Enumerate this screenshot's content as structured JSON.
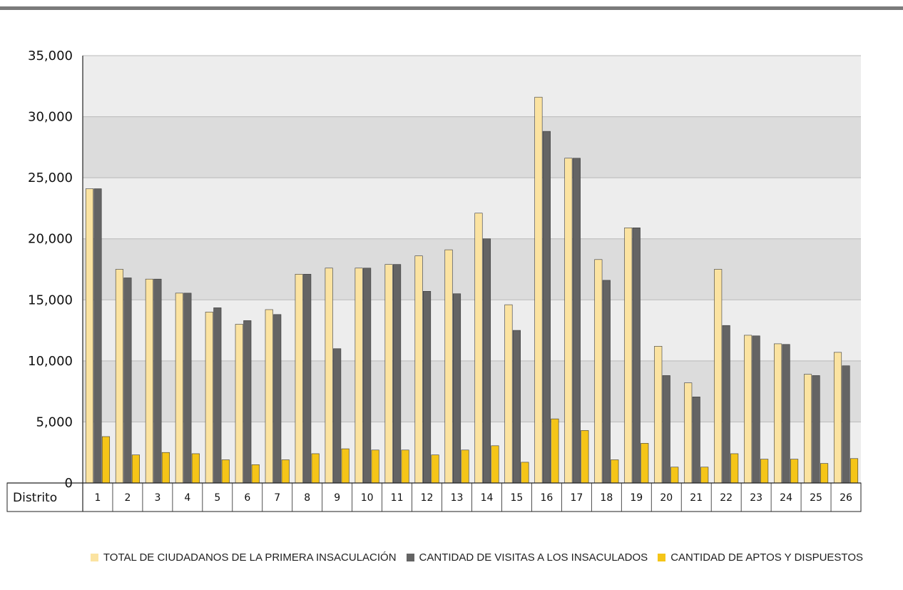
{
  "chart_data": {
    "type": "bar",
    "xlabel": "Distrito",
    "categories": [
      "1",
      "2",
      "3",
      "4",
      "5",
      "6",
      "7",
      "8",
      "9",
      "10",
      "11",
      "12",
      "13",
      "14",
      "15",
      "16",
      "17",
      "18",
      "19",
      "20",
      "21",
      "22",
      "23",
      "24",
      "25",
      "26"
    ],
    "yticks": [
      "0",
      "5,000",
      "10,000",
      "15,000",
      "20,000",
      "25,000",
      "30,000",
      "35,000"
    ],
    "ylim": [
      0,
      35000
    ],
    "grid": true,
    "legend_position": "bottom-right",
    "series": [
      {
        "name": "TOTAL DE CIUDADANOS DE LA PRIMERA INSACULACIÓN",
        "color": "#fbe3a1",
        "values": [
          24100,
          17500,
          16700,
          15550,
          14000,
          13000,
          14200,
          17100,
          17600,
          17600,
          17900,
          18600,
          19100,
          22100,
          14600,
          31600,
          26600,
          18300,
          20900,
          11200,
          8200,
          17500,
          12100,
          11400,
          8900,
          10700
        ]
      },
      {
        "name": "CANTIDAD DE VISITAS A LOS INSACULADOS",
        "color": "#646464",
        "values": [
          24100,
          16800,
          16700,
          15550,
          14350,
          13300,
          13800,
          17100,
          11000,
          17600,
          17900,
          15700,
          15500,
          20000,
          12500,
          28800,
          26600,
          16600,
          20900,
          8800,
          7050,
          12900,
          12050,
          11350,
          8800,
          9600
        ]
      },
      {
        "name": "CANTIDAD DE APTOS Y DISPUESTOS",
        "color": "#f5c518",
        "values": [
          3800,
          2300,
          2500,
          2400,
          1900,
          1500,
          1900,
          2400,
          2800,
          2700,
          2700,
          2300,
          2700,
          3050,
          1700,
          5250,
          4300,
          1900,
          3250,
          1300,
          1300,
          2400,
          1950,
          1950,
          1600,
          2000
        ]
      }
    ]
  }
}
